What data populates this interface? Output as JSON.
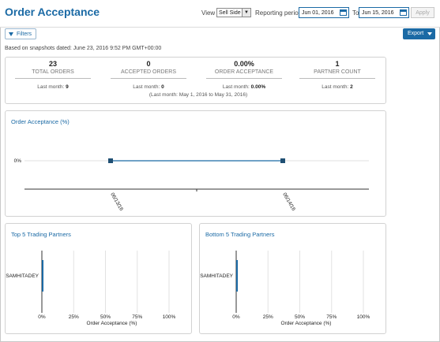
{
  "header": {
    "title": "Order Acceptance",
    "view_label": "View",
    "view_value": "Sell Side",
    "period_label": "Reporting period",
    "date_from": "Jun 01, 2016",
    "to_label": "To",
    "date_to": "Jun 15, 2016",
    "apply_label": "Apply"
  },
  "toolbar": {
    "filters_label": "Filters",
    "export_label": "Export"
  },
  "snapshot": "Based on snapshots dated: June 23, 2016 9:52 PM GMT+00:00",
  "stats": [
    {
      "value": "23",
      "label": "TOTAL ORDERS",
      "last_label": "Last month:",
      "last_value": "9"
    },
    {
      "value": "0",
      "label": "ACCEPTED ORDERS",
      "last_label": "Last month:",
      "last_value": "0"
    },
    {
      "value": "0.00%",
      "label": "ORDER ACCEPTANCE",
      "last_label": "Last month:",
      "last_value": "0.00%"
    },
    {
      "value": "1",
      "label": "PARTNER COUNT",
      "last_label": "Last month:",
      "last_value": "2"
    }
  ],
  "last_month_range": "(Last month: May 1, 2016 to May 31, 2016)",
  "chart_data": [
    {
      "type": "line",
      "title": "Order Acceptance (%)",
      "x": [
        "06/13/16",
        "06/14/16"
      ],
      "series": [
        {
          "values": [
            0,
            0
          ]
        }
      ],
      "y_tick_label": "0%",
      "color": "#1b6aa5"
    },
    {
      "type": "bar",
      "title": "Top 5 Trading Partners",
      "categories": [
        "SAMHITADEY"
      ],
      "values": [
        0
      ],
      "xlabel": "Order Acceptance (%)",
      "xticks": [
        "0%",
        "25%",
        "50%",
        "75%",
        "100%"
      ],
      "xlim": [
        0,
        100
      ]
    },
    {
      "type": "bar",
      "title": "Bottom 5 Trading Partners",
      "categories": [
        "SAMHITADEY"
      ],
      "values": [
        0
      ],
      "xlabel": "Order Acceptance (%)",
      "xticks": [
        "0%",
        "25%",
        "50%",
        "75%",
        "100%"
      ],
      "xlim": [
        0,
        100
      ]
    }
  ]
}
